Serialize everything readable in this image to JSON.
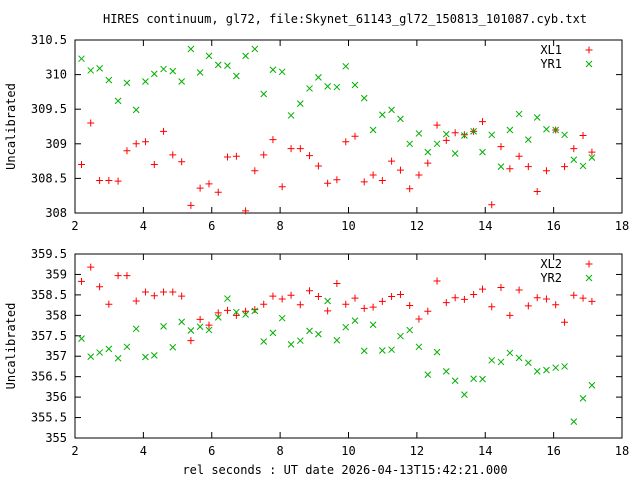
{
  "title": "HIRES continuum, gl72, file:Skynet_61143_gl72_150813_101087.cyb.txt",
  "xlabel": "rel seconds : UT date 2026-04-13T15:42:21.000",
  "colors": {
    "red": "#ff0000",
    "green": "#00b000",
    "axis": "#000000"
  },
  "chart_data": [
    {
      "type": "scatter",
      "ylabel": "Uncalibrated",
      "xlim": [
        2,
        18
      ],
      "ylim": [
        308,
        310.5
      ],
      "xticks": [
        2,
        4,
        6,
        8,
        10,
        12,
        14,
        16,
        18
      ],
      "xtick_labels": [
        "2",
        "4",
        "6",
        "8",
        "10",
        "12",
        "14",
        "16",
        "18"
      ],
      "yticks": [
        308,
        308.5,
        309,
        309.5,
        310,
        310.5
      ],
      "ytick_labels": [
        "308",
        "308.5",
        "309",
        "309.5",
        "310",
        "310.5"
      ],
      "legend_position": "top-right",
      "series": [
        {
          "name": "XL1",
          "marker": "plus",
          "color": "#ff0000",
          "x": [
            2.19,
            2.46,
            2.72,
            2.99,
            3.26,
            3.52,
            3.79,
            4.06,
            4.32,
            4.59,
            4.86,
            5.12,
            5.39,
            5.66,
            5.92,
            6.19,
            6.46,
            6.72,
            6.99,
            7.26,
            7.52,
            7.79,
            8.06,
            8.32,
            8.59,
            8.86,
            9.12,
            9.39,
            9.66,
            9.92,
            10.19,
            10.46,
            10.72,
            10.99,
            11.26,
            11.52,
            11.79,
            12.06,
            12.32,
            12.59,
            12.86,
            13.12,
            13.39,
            13.66,
            13.92,
            14.19,
            14.46,
            14.72,
            14.99,
            15.26,
            15.52,
            15.79,
            16.06,
            16.32,
            16.59,
            16.86,
            17.12
          ],
          "y": [
            308.7,
            309.3,
            308.47,
            308.47,
            308.46,
            308.9,
            309.0,
            309.03,
            308.7,
            309.18,
            308.84,
            308.74,
            308.11,
            308.36,
            308.42,
            308.3,
            308.81,
            308.82,
            308.03,
            308.61,
            308.84,
            309.06,
            308.38,
            308.93,
            308.93,
            308.83,
            308.68,
            308.43,
            308.48,
            309.03,
            309.11,
            308.45,
            308.55,
            308.47,
            308.75,
            308.62,
            308.35,
            308.55,
            308.72,
            309.27,
            309.05,
            309.16,
            309.13,
            309.18,
            309.32,
            308.12,
            308.96,
            308.64,
            308.82,
            308.67,
            308.31,
            308.61,
            309.2,
            308.67,
            308.93,
            309.12,
            308.88
          ]
        },
        {
          "name": "YR1",
          "marker": "cross",
          "color": "#00b000",
          "x": [
            2.19,
            2.46,
            2.72,
            2.99,
            3.26,
            3.52,
            3.79,
            4.06,
            4.32,
            4.59,
            4.86,
            5.12,
            5.39,
            5.66,
            5.92,
            6.19,
            6.46,
            6.72,
            6.99,
            7.26,
            7.52,
            7.79,
            8.06,
            8.32,
            8.59,
            8.86,
            9.12,
            9.39,
            9.66,
            9.92,
            10.19,
            10.46,
            10.72,
            10.99,
            11.26,
            11.52,
            11.79,
            12.06,
            12.32,
            12.59,
            12.86,
            13.12,
            13.39,
            13.66,
            13.92,
            14.19,
            14.46,
            14.72,
            14.99,
            15.26,
            15.52,
            15.79,
            16.06,
            16.32,
            16.59,
            16.86,
            17.12
          ],
          "y": [
            310.23,
            310.06,
            310.09,
            309.92,
            309.62,
            309.88,
            309.49,
            309.9,
            310.01,
            310.08,
            310.05,
            309.9,
            310.37,
            310.03,
            310.27,
            310.14,
            310.13,
            309.98,
            310.27,
            310.37,
            309.72,
            310.07,
            310.04,
            309.41,
            309.58,
            309.8,
            309.96,
            309.83,
            309.82,
            310.12,
            309.85,
            309.66,
            309.2,
            309.42,
            309.49,
            309.36,
            309.0,
            309.15,
            308.88,
            309.0,
            309.14,
            308.86,
            309.12,
            309.18,
            308.88,
            309.13,
            308.67,
            309.2,
            309.43,
            309.06,
            309.38,
            309.21,
            309.2,
            309.13,
            308.77,
            308.68,
            308.8
          ]
        }
      ]
    },
    {
      "type": "scatter",
      "ylabel": "Uncalibrated",
      "xlim": [
        2,
        18
      ],
      "ylim": [
        355,
        359.5
      ],
      "xticks": [
        2,
        4,
        6,
        8,
        10,
        12,
        14,
        16,
        18
      ],
      "xtick_labels": [
        "2",
        "4",
        "6",
        "8",
        "10",
        "12",
        "14",
        "16",
        "18"
      ],
      "yticks": [
        355,
        355.5,
        356,
        356.5,
        357,
        357.5,
        358,
        358.5,
        359,
        359.5
      ],
      "ytick_labels": [
        "355",
        "355.5",
        "356",
        "356.5",
        "357",
        "357.5",
        "358",
        "358.5",
        "359",
        "359.5"
      ],
      "legend_position": "top-right",
      "series": [
        {
          "name": "XL2",
          "marker": "plus",
          "color": "#ff0000",
          "x": [
            2.19,
            2.46,
            2.72,
            2.99,
            3.26,
            3.52,
            3.79,
            4.06,
            4.32,
            4.59,
            4.86,
            5.12,
            5.39,
            5.66,
            5.92,
            6.19,
            6.46,
            6.72,
            6.99,
            7.26,
            7.52,
            7.79,
            8.06,
            8.32,
            8.59,
            8.86,
            9.12,
            9.39,
            9.66,
            9.92,
            10.19,
            10.46,
            10.72,
            10.99,
            11.26,
            11.52,
            11.79,
            12.06,
            12.32,
            12.59,
            12.86,
            13.12,
            13.39,
            13.66,
            13.92,
            14.19,
            14.46,
            14.72,
            14.99,
            15.26,
            15.52,
            15.79,
            16.06,
            16.32,
            16.59,
            16.86,
            17.12
          ],
          "y": [
            358.83,
            359.18,
            358.7,
            358.27,
            358.97,
            358.97,
            358.35,
            358.57,
            358.48,
            358.57,
            358.57,
            358.47,
            357.38,
            357.9,
            357.76,
            358.06,
            358.12,
            358.0,
            358.1,
            358.14,
            358.27,
            358.47,
            358.4,
            358.49,
            358.26,
            358.6,
            358.46,
            358.11,
            358.78,
            358.27,
            358.42,
            358.17,
            358.2,
            358.34,
            358.46,
            358.51,
            358.24,
            357.91,
            358.1,
            358.84,
            358.31,
            358.43,
            358.39,
            358.51,
            358.64,
            358.21,
            358.68,
            358.0,
            358.62,
            358.23,
            358.43,
            358.4,
            358.26,
            357.83,
            358.49,
            358.42,
            358.34
          ]
        },
        {
          "name": "YR2",
          "marker": "cross",
          "color": "#00b000",
          "x": [
            2.19,
            2.46,
            2.72,
            2.99,
            3.26,
            3.52,
            3.79,
            4.06,
            4.32,
            4.59,
            4.86,
            5.12,
            5.39,
            5.66,
            5.92,
            6.19,
            6.46,
            6.72,
            6.99,
            7.26,
            7.52,
            7.79,
            8.06,
            8.32,
            8.59,
            8.86,
            9.12,
            9.39,
            9.66,
            9.92,
            10.19,
            10.46,
            10.72,
            10.99,
            11.26,
            11.52,
            11.79,
            12.06,
            12.32,
            12.59,
            12.86,
            13.12,
            13.39,
            13.66,
            13.92,
            14.19,
            14.46,
            14.72,
            14.99,
            15.26,
            15.52,
            15.79,
            16.06,
            16.32,
            16.59,
            16.86,
            17.12
          ],
          "y": [
            357.43,
            356.99,
            357.09,
            357.18,
            356.95,
            357.23,
            357.67,
            356.98,
            357.02,
            357.73,
            357.22,
            357.84,
            357.63,
            357.72,
            357.64,
            357.95,
            358.41,
            358.08,
            358.02,
            358.11,
            357.36,
            357.57,
            357.93,
            357.29,
            357.38,
            357.62,
            357.54,
            358.35,
            357.39,
            357.71,
            357.87,
            357.13,
            357.77,
            357.14,
            357.16,
            357.49,
            357.64,
            357.23,
            356.55,
            357.1,
            356.63,
            356.4,
            356.06,
            356.45,
            356.44,
            356.9,
            356.86,
            357.08,
            356.96,
            356.84,
            356.63,
            356.66,
            356.72,
            356.75,
            355.4,
            355.97,
            356.29
          ]
        }
      ]
    }
  ]
}
